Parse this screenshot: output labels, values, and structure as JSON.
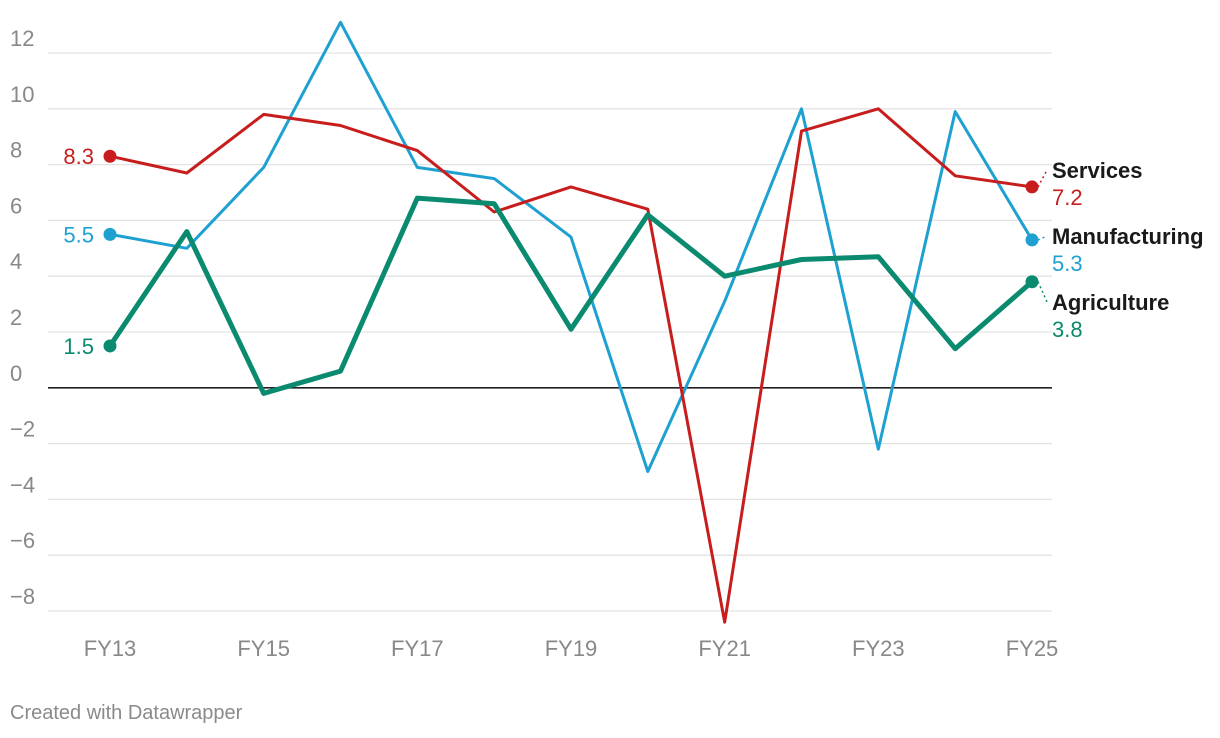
{
  "chart_data": {
    "type": "line",
    "title": "",
    "xlabel": "",
    "ylabel": "",
    "x": [
      "FY13",
      "FY14",
      "FY15",
      "FY16",
      "FY17",
      "FY18",
      "FY19",
      "FY20",
      "FY21",
      "FY22",
      "FY23",
      "FY24",
      "FY25"
    ],
    "x_tick_labels": [
      "FY13",
      "FY15",
      "FY17",
      "FY19",
      "FY21",
      "FY23",
      "FY25"
    ],
    "y_ticks": [
      12,
      10,
      8,
      6,
      4,
      2,
      0,
      -2,
      -4,
      -6,
      -8
    ],
    "y_tick_labels": [
      "12",
      "10",
      "8",
      "6",
      "4",
      "2",
      "0",
      "−2",
      "−4",
      "−6",
      "−8"
    ],
    "ylim": [
      -8.5,
      13.2
    ],
    "grid": true,
    "legend": "direct labels at line ends",
    "series": [
      {
        "name": "Manufacturing",
        "color": "#1ea1d1",
        "values": [
          5.5,
          5.0,
          7.9,
          13.1,
          7.9,
          7.5,
          5.4,
          -3.0,
          3.1,
          10.0,
          -2.2,
          9.9,
          5.3
        ],
        "start_label": "5.5",
        "end_label": "5.3"
      },
      {
        "name": "Services",
        "color": "#c71e1d",
        "values": [
          8.3,
          7.7,
          9.8,
          9.4,
          8.5,
          6.3,
          7.2,
          6.4,
          -8.4,
          9.2,
          10.0,
          7.6,
          7.2
        ],
        "start_label": "8.3",
        "end_label": "7.2"
      },
      {
        "name": "Agriculture",
        "color": "#0a8a6e",
        "values": [
          1.5,
          5.6,
          -0.2,
          0.6,
          6.8,
          6.6,
          2.1,
          6.2,
          4.0,
          4.6,
          4.7,
          1.4,
          3.8
        ],
        "start_label": "1.5",
        "end_label": "3.8"
      }
    ]
  },
  "footer": "Created with Datawrapper"
}
